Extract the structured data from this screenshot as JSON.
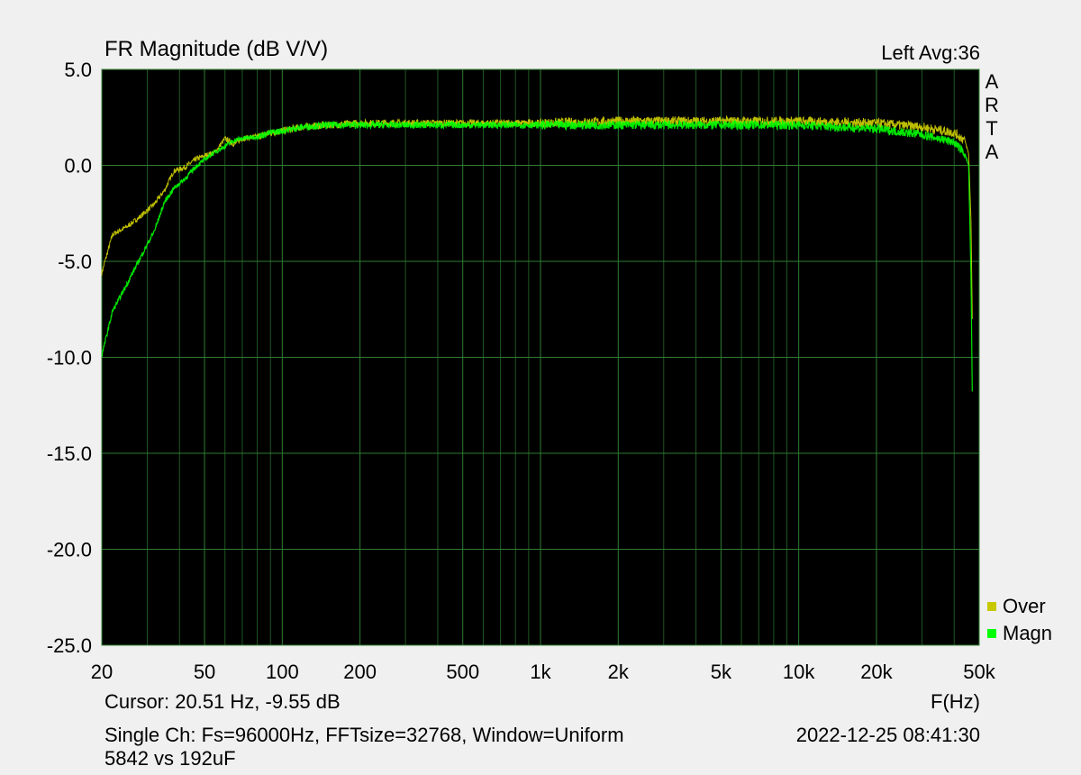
{
  "chart_data": {
    "type": "line",
    "title": "FR Magnitude (dB V/V)",
    "channel_label": "Left  Avg:36",
    "watermark": "ARTA",
    "xlabel": "F(Hz)",
    "xscale": "log",
    "xlim": [
      20,
      50000
    ],
    "ylim": [
      -25,
      5
    ],
    "x_ticks": [
      20,
      50,
      100,
      200,
      500,
      1000,
      2000,
      5000,
      10000,
      20000,
      50000
    ],
    "x_tick_labels": [
      "20",
      "50",
      "100",
      "200",
      "500",
      "1k",
      "2k",
      "5k",
      "10k",
      "20k",
      "50k"
    ],
    "y_ticks": [
      5,
      0,
      -5,
      -10,
      -15,
      -20,
      -25
    ],
    "y_tick_labels": [
      "5.0",
      "0.0",
      "-5.0",
      "-10.0",
      "-15.0",
      "-20.0",
      "-25.0"
    ],
    "grid": true,
    "background": "#000000",
    "grid_color": "#2e7d32",
    "legend_position": "bottom-right",
    "series": [
      {
        "name": "Over",
        "color": "#c8c800",
        "x": [
          20,
          22,
          25,
          28,
          32,
          35,
          38,
          42,
          46,
          50,
          55,
          60,
          65,
          70,
          80,
          90,
          100,
          120,
          150,
          200,
          300,
          500,
          1000,
          2000,
          5000,
          10000,
          20000,
          30000,
          40000,
          44000,
          45500,
          46500,
          47000
        ],
        "y": [
          -5.6,
          -3.6,
          -3.2,
          -2.7,
          -2.0,
          -1.3,
          -0.3,
          -0.1,
          0.3,
          0.5,
          0.7,
          1.4,
          1.1,
          1.4,
          1.5,
          1.7,
          1.8,
          2.0,
          2.1,
          2.2,
          2.2,
          2.2,
          2.2,
          2.3,
          2.3,
          2.3,
          2.2,
          2.0,
          1.7,
          1.3,
          0.6,
          -3.0,
          -8.0
        ]
      },
      {
        "name": "Magn",
        "color": "#00ff00",
        "x": [
          20,
          22,
          25,
          28,
          32,
          35,
          38,
          42,
          46,
          50,
          55,
          60,
          65,
          70,
          80,
          90,
          100,
          120,
          150,
          200,
          300,
          500,
          1000,
          2000,
          5000,
          10000,
          20000,
          30000,
          40000,
          44000,
          45500,
          46500,
          47000
        ],
        "y": [
          -9.9,
          -7.6,
          -6.2,
          -4.9,
          -3.4,
          -1.9,
          -1.2,
          -0.7,
          -0.1,
          0.3,
          0.7,
          1.0,
          1.3,
          1.4,
          1.5,
          1.7,
          1.8,
          2.0,
          2.1,
          2.1,
          2.1,
          2.1,
          2.1,
          2.1,
          2.1,
          2.1,
          1.9,
          1.6,
          1.2,
          0.6,
          0.0,
          -6.0,
          -11.8
        ]
      }
    ]
  },
  "footer": {
    "cursor": "Cursor: 20.51 Hz, -9.55 dB",
    "settings": "Single Ch: Fs=96000Hz, FFTsize=32768, Window=Uniform",
    "timestamp": "2022-12-25  08:41:30",
    "note": "5842 vs 192uF"
  }
}
